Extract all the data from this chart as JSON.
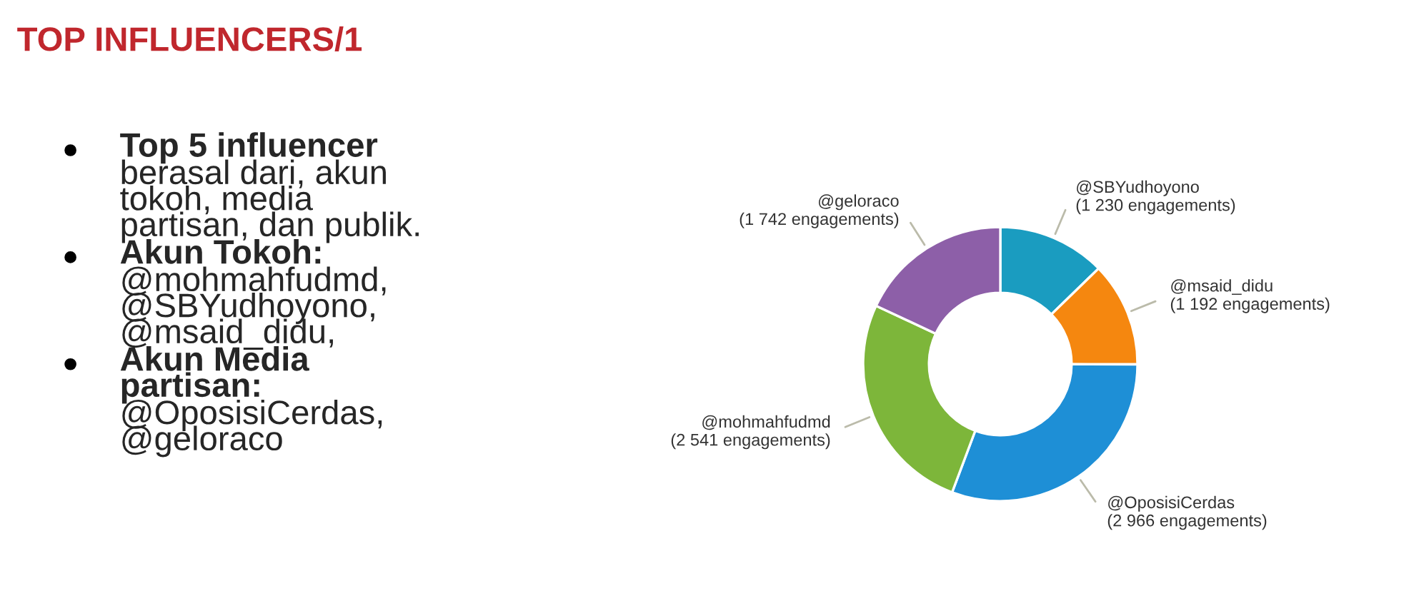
{
  "chart_data": {
    "type": "donut",
    "title": "TOP INFLUENCERS/1",
    "categories": [
      "@SBYudhoyono",
      "@msaid_didu",
      "@OposisiCerdas",
      "@mohmahfudmd",
      "@geloraco"
    ],
    "values": [
      1230,
      1192,
      2966,
      2541,
      1742
    ],
    "colors": [
      "#1a9cc0",
      "#f5870f",
      "#1e8fd6",
      "#7db63a",
      "#8d5fa8"
    ],
    "value_labels": [
      "(1 230 engagements)",
      "(1 192 engagements)",
      "(2 966 engagements)",
      "(2 541 engagements)",
      "(1 742 engagements)"
    ],
    "legend": false,
    "annotations": [
      "Top 5 influencer",
      "berasal dari, akun\ntokoh, media\npartisan, dan publik.",
      "Akun Tokoh:",
      "@mohmahfudmd,\n@SBYudhoyono,\n@msaid_didu,",
      "Akun Media\npartisan:",
      "@OposisiCerdas,\n@geloraco"
    ]
  }
}
